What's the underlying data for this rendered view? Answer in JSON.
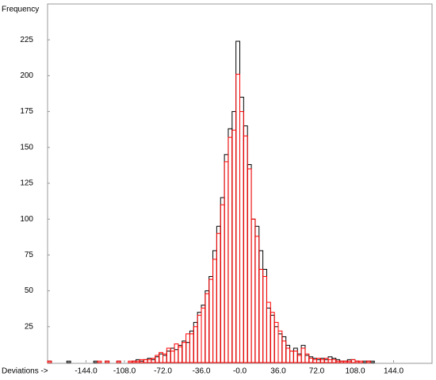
{
  "chart_data": {
    "type": "histogram",
    "y_label": "Frequency",
    "x_label": "Deviations ->",
    "bins": [
      -180,
      -176.4,
      -172.8,
      -169.2,
      -165.6,
      -162,
      -158.4,
      -154.8,
      -151.2,
      -147.6,
      -144,
      -140.4,
      -136.8,
      -133.2,
      -129.6,
      -126,
      -122.4,
      -118.8,
      -115.2,
      -111.6,
      -108,
      -104.4,
      -100.8,
      -97.2,
      -93.6,
      -90,
      -86.4,
      -82.8,
      -79.2,
      -75.6,
      -72,
      -68.4,
      -64.8,
      -61.2,
      -57.6,
      -54,
      -50.4,
      -46.8,
      -43.2,
      -39.6,
      -36,
      -32.4,
      -28.8,
      -25.2,
      -21.6,
      -18,
      -14.4,
      -10.8,
      -7.2,
      -3.6,
      0,
      3.6,
      7.2,
      10.8,
      14.4,
      18,
      21.6,
      25.2,
      28.8,
      32.4,
      36,
      39.6,
      43.2,
      46.8,
      50.4,
      54,
      57.6,
      61.2,
      64.8,
      68.4,
      72,
      75.6,
      79.2,
      82.8,
      86.4,
      90,
      93.6,
      97.2,
      100.8,
      104.4,
      108,
      111.6,
      115.2,
      118.8,
      122.4,
      126,
      129.6,
      133.2,
      136.8,
      140.4,
      144,
      147.6,
      151.2,
      154.8,
      158.4,
      162,
      165.6,
      169.2,
      172.8,
      176.4,
      180
    ],
    "series": [
      {
        "color": "#000000",
        "values": [
          1,
          0,
          0,
          0,
          0,
          1,
          0,
          0,
          0,
          0,
          0,
          0,
          1,
          0,
          0,
          1,
          0,
          0,
          1,
          0,
          0,
          0,
          1,
          2,
          1,
          2,
          3,
          2,
          4,
          6,
          5,
          8,
          10,
          9,
          12,
          15,
          14,
          22,
          28,
          35,
          40,
          50,
          60,
          78,
          95,
          115,
          145,
          163,
          175,
          224,
          185,
          165,
          138,
          100,
          95,
          78,
          65,
          38,
          33,
          25,
          20,
          18,
          12,
          8,
          10,
          6,
          12,
          5,
          4,
          3,
          2,
          3,
          2,
          4,
          3,
          2,
          1,
          1,
          2,
          2,
          1,
          0,
          1,
          1,
          1,
          0,
          0,
          0,
          0,
          0,
          0,
          0,
          0,
          0,
          0,
          0,
          0,
          0,
          0,
          0
        ]
      },
      {
        "color": "#ff0000",
        "values": [
          1,
          0,
          0,
          0,
          0,
          0,
          0,
          0,
          0,
          0,
          0,
          0,
          0,
          1,
          0,
          1,
          0,
          0,
          1,
          0,
          0,
          1,
          1,
          1,
          2,
          2,
          2,
          3,
          5,
          7,
          6,
          10,
          8,
          13,
          11,
          14,
          20,
          20,
          25,
          33,
          38,
          48,
          58,
          72,
          90,
          110,
          140,
          157,
          162,
          201,
          175,
          158,
          135,
          100,
          88,
          65,
          60,
          42,
          35,
          28,
          22,
          15,
          10,
          8,
          8,
          5,
          10,
          6,
          3,
          2,
          3,
          2,
          3,
          2,
          2,
          1,
          1,
          1,
          1,
          2,
          1,
          1,
          0,
          1,
          0,
          0,
          0,
          0,
          0,
          0,
          0,
          0,
          0,
          0,
          0,
          0,
          0,
          0,
          0,
          0
        ]
      }
    ],
    "xlim": [
      -180,
      180
    ],
    "xticks": [
      {
        "value": -144,
        "label": "-144.0"
      },
      {
        "value": -108,
        "label": "-108.0"
      },
      {
        "value": -72,
        "label": "-72.0"
      },
      {
        "value": -36,
        "label": "-36.0"
      },
      {
        "value": 0,
        "label": "-0.0"
      },
      {
        "value": 36,
        "label": "36.0"
      },
      {
        "value": 72,
        "label": "72.0"
      },
      {
        "value": 108,
        "label": "108.0"
      },
      {
        "value": 144,
        "label": "144.0"
      }
    ],
    "ylim": [
      0,
      250
    ],
    "yticks": [
      25,
      50,
      75,
      100,
      125,
      150,
      175,
      200,
      225
    ]
  }
}
